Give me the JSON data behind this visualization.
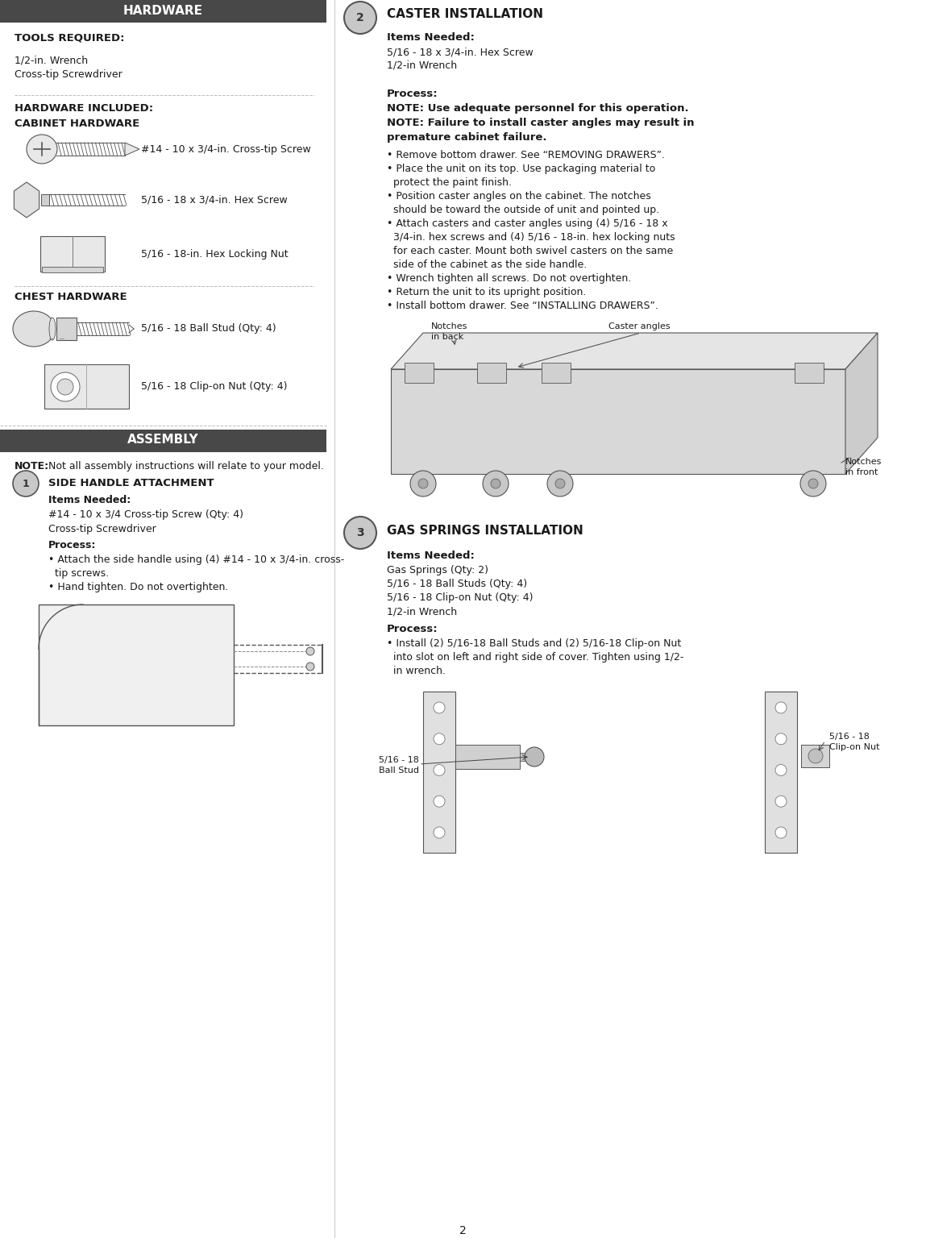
{
  "page_width": 11.49,
  "page_height": 15.36,
  "bg_color": "#ffffff",
  "header_bg": "#484848",
  "header_text_color": "#ffffff",
  "body_text_color": "#1a1a1a",
  "divider_color": "#c0c0c0",
  "col_div": 0.365,
  "page_number": "2",
  "lc": {
    "tools_req": "TOOLS REQUIRED:",
    "tools": [
      "1/2-in. Wrench",
      "Cross-tip Screwdriver"
    ],
    "hw_inc1": "HARDWARE INCLUDED:",
    "hw_inc2": "CABINET HARDWARE",
    "cab_items": [
      "#14 - 10 x 3/4-in. Cross-tip Screw",
      "5/16 - 18 x 3/4-in. Hex Screw",
      "5/16 - 18-in. Hex Locking Nut"
    ],
    "chest_hdr": "CHEST HARDWARE",
    "chest_items": [
      "5/16 - 18 Ball Stud (Qty: 4)",
      "5/16 - 18 Clip-on Nut (Qty: 4)"
    ],
    "asm_hdr": "ASSEMBLY",
    "asm_note_bold": "NOTE:",
    "asm_note_rest": " Not all assembly instructions will relate to your model.",
    "s1_hdr": "SIDE HANDLE ATTACHMENT",
    "s1_in_hdr": "Items Needed:",
    "s1_items": [
      "#14 - 10 x 3/4 Cross-tip Screw (Qty: 4)",
      "Cross-tip Screwdriver"
    ],
    "s1_pr_hdr": "Process:",
    "s1_proc": [
      "• Attach the side handle using (4) #14 - 10 x 3/4-in. cross-",
      "  tip screws.",
      "• Hand tighten. Do not overtighten."
    ]
  },
  "rc": {
    "s2_hdr": "CASTER INSTALLATION",
    "s2_in_hdr": "Items Needed:",
    "s2_items": [
      "5/16 - 18 x 3/4-in. Hex Screw",
      "1/2-in Wrench"
    ],
    "s2_pr_hdr": "Process:",
    "s2_note1": "NOTE: Use adequate personnel for this operation.",
    "s2_note2": "NOTE: Failure to install caster angles may result in",
    "s2_note2b": "premature cabinet failure.",
    "s2_bullets": [
      "• Remove bottom drawer. See “REMOVING DRAWERS”.",
      "• Place the unit on its top. Use packaging material to",
      "  protect the paint finish.",
      "• Position caster angles on the cabinet. The notches",
      "  should be toward the outside of unit and pointed up.",
      "• Attach casters and caster angles using (4) 5/16 - 18 x",
      "  3/4-in. hex screws and (4) 5/16 - 18-in. hex locking nuts",
      "  for each caster. Mount both swivel casters on the same",
      "  side of the cabinet as the side handle.",
      "• Wrench tighten all screws. Do not overtighten.",
      "• Return the unit to its upright position.",
      "• Install bottom drawer. See “INSTALLING DRAWERS”."
    ],
    "caster_lbl1": "Notches\nin back",
    "caster_lbl2": "Caster angles",
    "caster_lbl3": "Notches\nin front",
    "s3_hdr": "GAS SPRINGS INSTALLATION",
    "s3_in_hdr": "Items Needed:",
    "s3_items": [
      "Gas Springs (Qty: 2)",
      "5/16 - 18 Ball Studs (Qty: 4)",
      "5/16 - 18 Clip-on Nut (Qty: 4)",
      "1/2-in Wrench"
    ],
    "s3_pr_hdr": "Process:",
    "s3_bullets": [
      "• Install (2) 5/16-18 Ball Studs and (2) 5/16-18 Clip-on Nut",
      "  into slot on left and right side of cover. Tighten using 1/2-",
      "  in wrench."
    ],
    "s3_lbl1": "5/16 - 18\nBall Stud",
    "s3_lbl2": "5/16 - 18\nClip-on Nut"
  }
}
